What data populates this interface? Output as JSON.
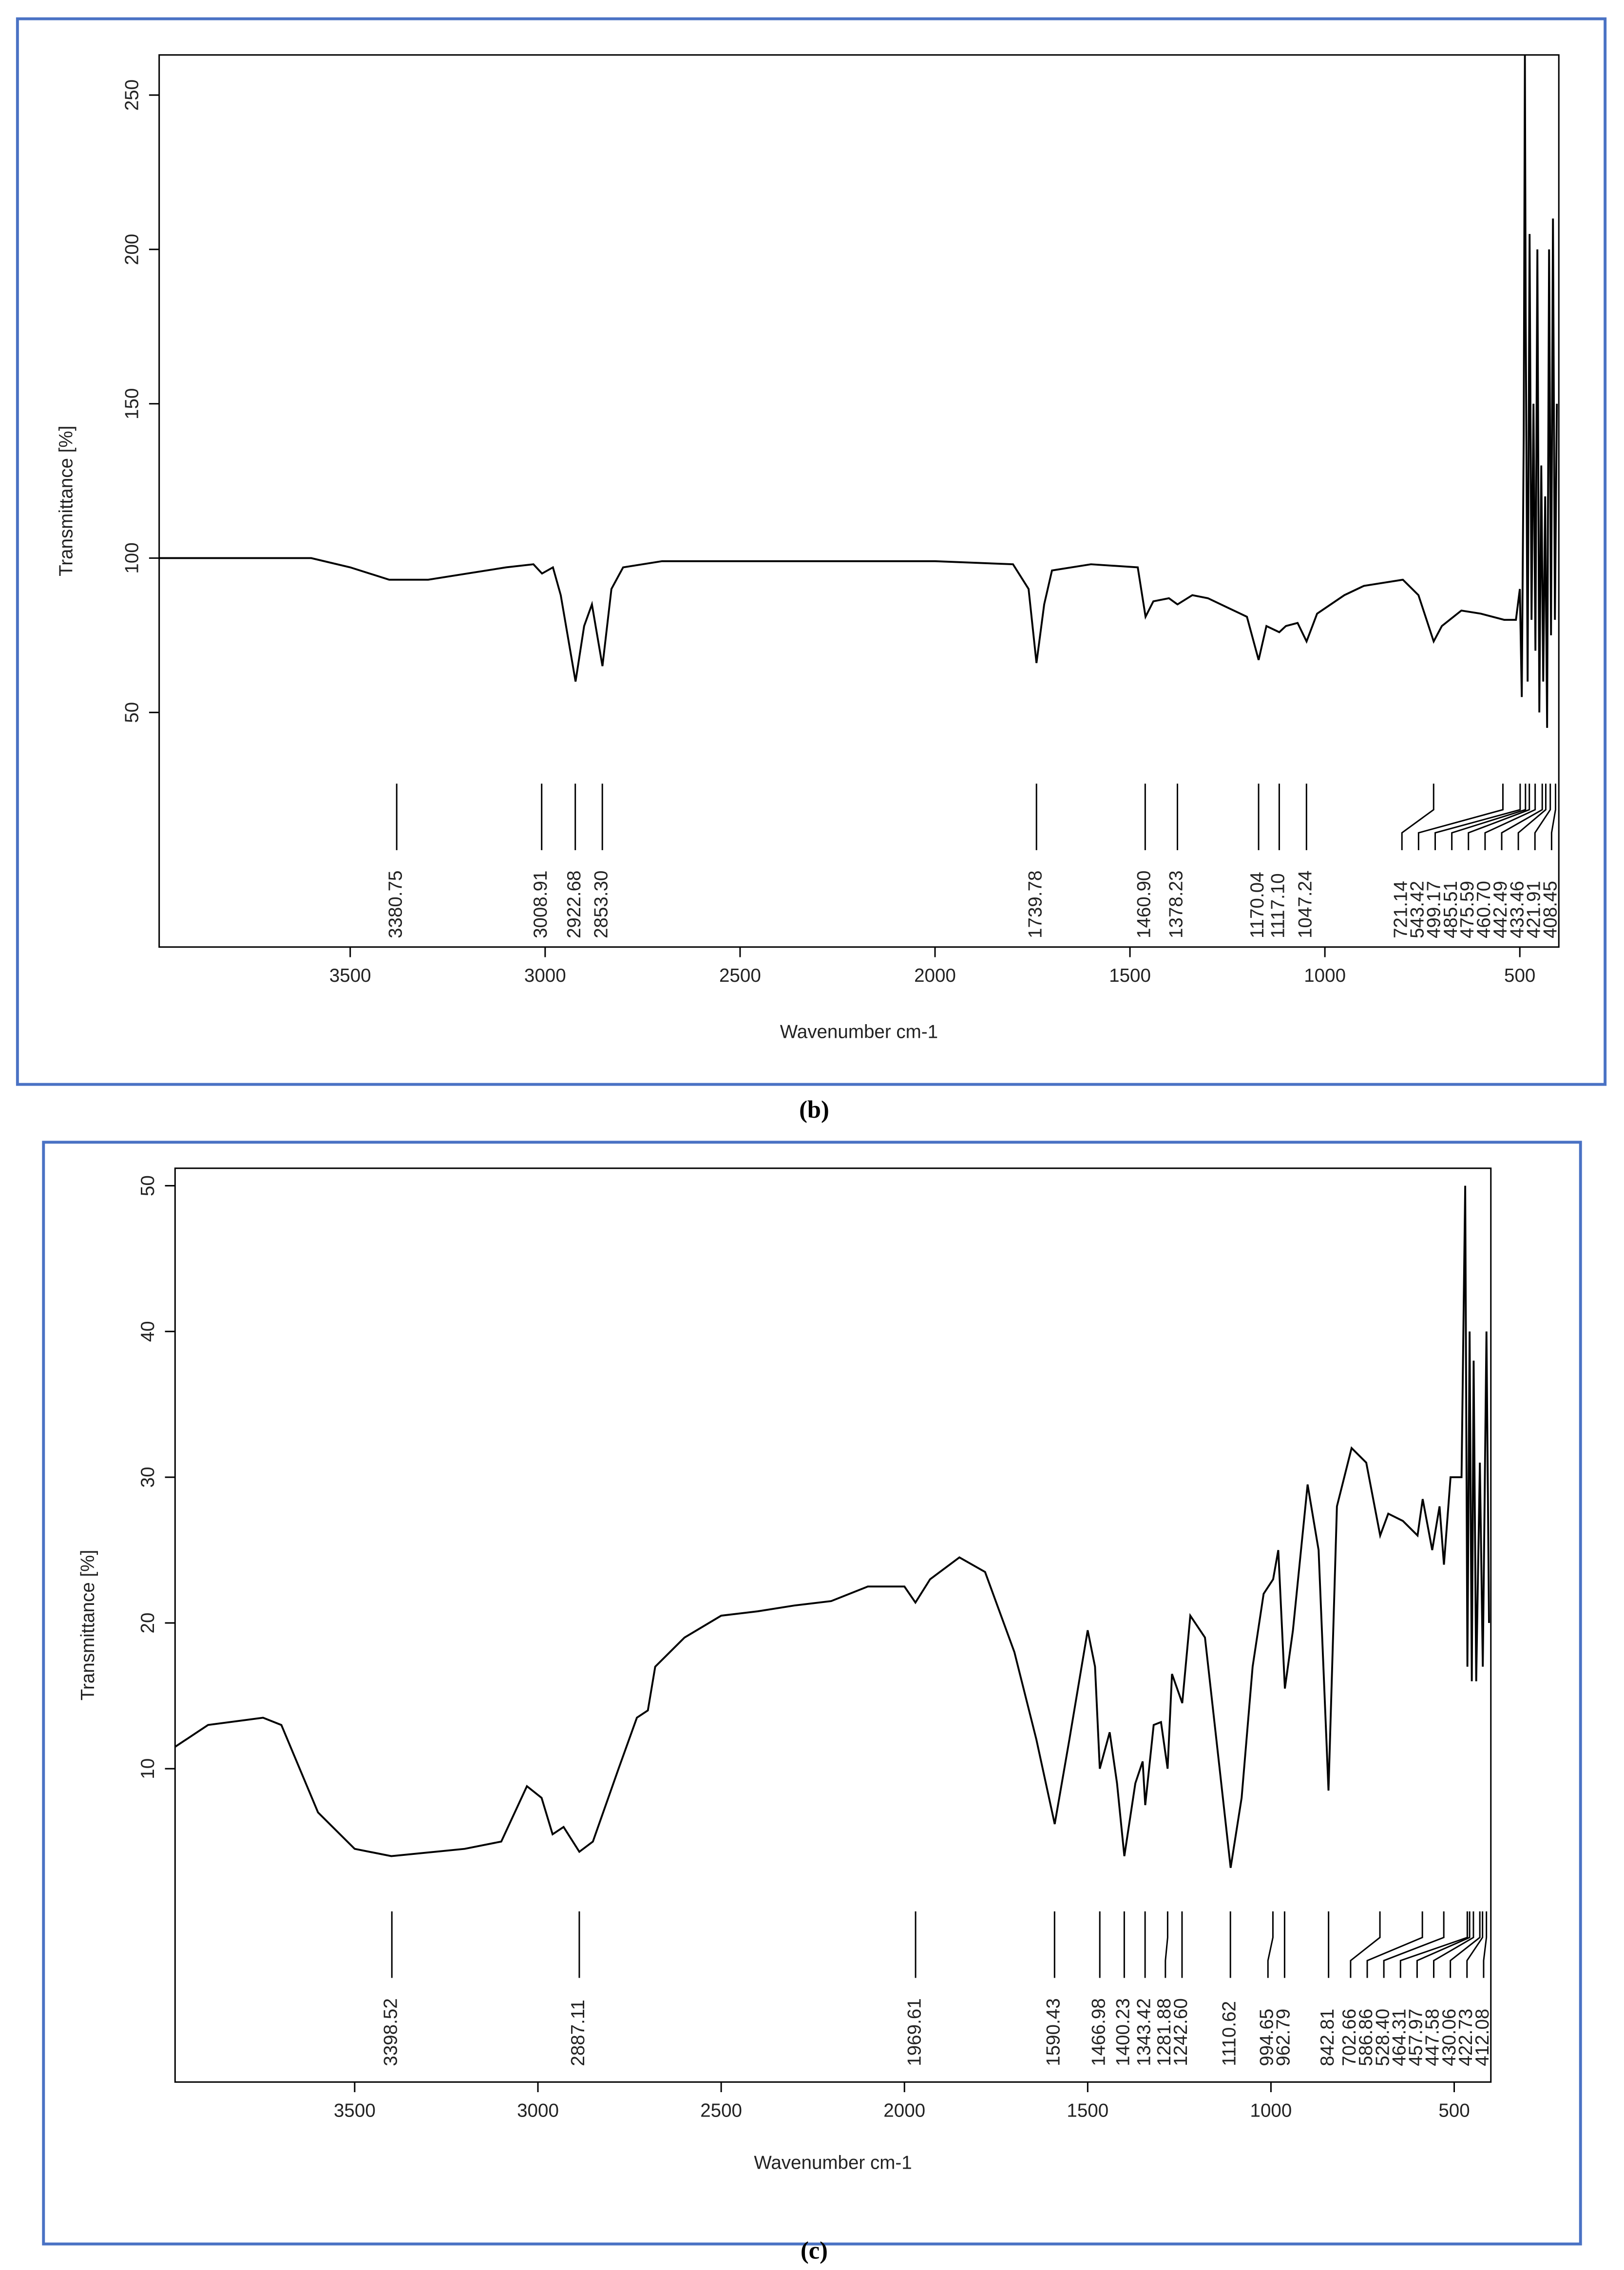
{
  "chart_data": [
    {
      "type": "line",
      "caption": "(b)",
      "xlabel": "Wavenumber cm-1",
      "ylabel": "Transmittance [%]",
      "xlim": [
        3990,
        400
      ],
      "ylim": [
        -26,
        263
      ],
      "xticks": [
        3500,
        3000,
        2500,
        2000,
        1500,
        1000,
        500
      ],
      "yticks": [
        50,
        100,
        150,
        200,
        250
      ],
      "color": "#000000",
      "x": [
        3990,
        3600,
        3500,
        3400,
        3300,
        3200,
        3100,
        3030,
        3008,
        2980,
        2960,
        2922,
        2900,
        2880,
        2853,
        2830,
        2800,
        2700,
        2000,
        1800,
        1760,
        1739.78,
        1720,
        1700,
        1600,
        1480,
        1460,
        1440,
        1400,
        1378,
        1340,
        1300,
        1250,
        1200,
        1170,
        1150,
        1117,
        1100,
        1070,
        1047,
        1020,
        950,
        900,
        850,
        800,
        760,
        721,
        700,
        650,
        600,
        540,
        510,
        500,
        495,
        490,
        487,
        485,
        480,
        475,
        470,
        465,
        460,
        455,
        450,
        445,
        440,
        435,
        430,
        425,
        420,
        415,
        410,
        405
      ],
      "values": [
        100,
        100,
        97,
        93,
        93,
        95,
        97,
        98,
        95,
        97,
        88,
        60,
        78,
        85,
        65,
        90,
        97,
        99,
        99,
        98,
        90,
        66,
        85,
        96,
        98,
        97,
        81,
        86,
        87,
        85,
        88,
        87,
        84,
        81,
        67,
        78,
        76,
        78,
        79,
        73,
        82,
        88,
        91,
        92,
        93,
        88,
        73,
        78,
        83,
        82,
        80,
        80,
        90,
        55,
        140,
        263,
        180,
        60,
        205,
        80,
        150,
        70,
        200,
        50,
        130,
        60,
        120,
        45,
        200,
        75,
        210,
        80,
        150
      ],
      "peaks": [
        3380.75,
        3008.91,
        2922.68,
        {
          "value": 2853.3,
          "label": "2853.30"
        },
        1739.78,
        {
          "value": 1460.9,
          "label": "1460.90"
        },
        1378.23,
        1170.04,
        {
          "value": 1117.1,
          "label": "1117.10"
        },
        1047.24,
        721.14,
        543.42,
        499.17,
        485.51,
        475.59,
        {
          "value": 460.7,
          "label": "460.70"
        },
        442.49,
        433.46,
        421.91,
        408.45
      ]
    },
    {
      "type": "line",
      "caption": "(c)",
      "xlabel": "Wavenumber cm-1",
      "ylabel": "Transmittance [%]",
      "xlim": [
        3990,
        400
      ],
      "ylim": [
        -11.5,
        51.2
      ],
      "xticks": [
        3500,
        3000,
        2500,
        2000,
        1500,
        1000,
        500
      ],
      "yticks": [
        10,
        20,
        30,
        40,
        50
      ],
      "color": "#000000",
      "x": [
        3990,
        3900,
        3750,
        3700,
        3600,
        3500,
        3400,
        3200,
        3100,
        3030,
        2990,
        2960,
        2930,
        2887,
        2850,
        2780,
        2730,
        2700,
        2680,
        2600,
        2500,
        2400,
        2300,
        2200,
        2100,
        2000,
        1970,
        1930,
        1850,
        1780,
        1700,
        1640,
        1590,
        1550,
        1500,
        1480,
        1467,
        1440,
        1420,
        1400,
        1370,
        1350,
        1343,
        1320,
        1300,
        1282,
        1270,
        1242,
        1220,
        1180,
        1140,
        1110,
        1080,
        1050,
        1020,
        994,
        980,
        962,
        940,
        900,
        870,
        843,
        820,
        780,
        740,
        702,
        680,
        640,
        600,
        586,
        560,
        540,
        528,
        510,
        480,
        470,
        464,
        458,
        452,
        447,
        440,
        430,
        422,
        412,
        405
      ],
      "values": [
        11.5,
        13,
        13.5,
        13,
        7,
        4.5,
        4,
        4.5,
        5,
        8.8,
        8,
        5.5,
        6,
        4.3,
        5,
        10,
        13.5,
        14,
        17,
        19,
        20.5,
        20.8,
        21.2,
        21.5,
        22.5,
        22.5,
        21.4,
        23,
        24.5,
        23.5,
        18,
        12,
        6.2,
        12,
        19.5,
        17,
        10,
        12.5,
        9,
        4,
        9,
        10.5,
        7.5,
        13,
        13.2,
        10,
        16.5,
        14.5,
        20.5,
        19,
        10,
        3.2,
        8,
        17,
        22,
        23,
        25,
        15.5,
        19.5,
        29.5,
        25,
        8.5,
        28,
        32,
        31,
        26,
        27.5,
        27,
        26,
        28.5,
        25,
        28,
        24,
        30,
        30,
        50,
        17,
        40,
        16,
        38,
        16,
        31,
        17,
        40,
        20
      ],
      "peaks": [
        3398.52,
        2887.11,
        1969.61,
        1590.43,
        1466.98,
        1400.23,
        1343.42,
        1281.88,
        {
          "value": 1242.6,
          "label": "1242.60"
        },
        1110.62,
        994.65,
        962.79,
        842.81,
        702.66,
        586.86,
        {
          "value": 528.4,
          "label": "528.40"
        },
        464.31,
        457.97,
        447.58,
        430.06,
        422.73,
        412.08
      ]
    }
  ]
}
